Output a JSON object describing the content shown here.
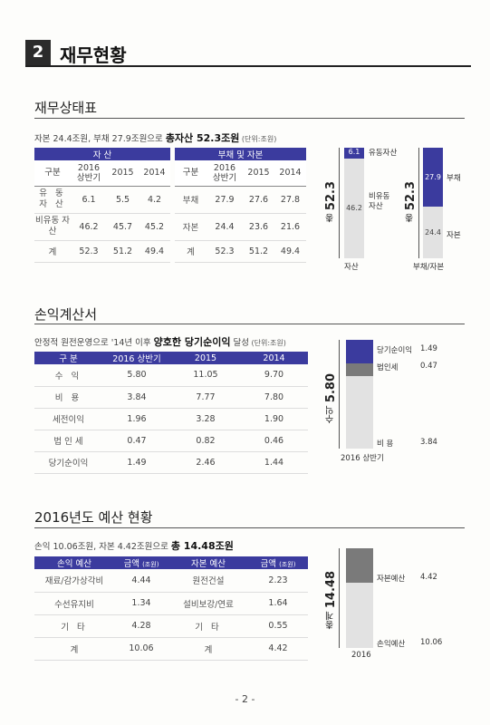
{
  "header": {
    "number": "2",
    "title": "재무현황"
  },
  "balance": {
    "title": "재무상태표",
    "summary_pre": "자본 24.4조원, 부채 27.9조원으로 ",
    "summary_bold": "총자산 52.3조원",
    "unit": " (단위:조원)",
    "assets_header": "자 산",
    "liab_header": "부채 및 자본",
    "col_label": "구분",
    "col_2016": "2016 상반기",
    "col_2015": "2015",
    "col_2014": "2014",
    "asset_rows": [
      {
        "label": "유 동 자 산",
        "v2016": "6.1",
        "v2015": "5.5",
        "v2014": "4.2"
      },
      {
        "label": "비유동 자 산",
        "v2016": "46.2",
        "v2015": "45.7",
        "v2014": "45.2"
      },
      {
        "label": "계",
        "v2016": "52.3",
        "v2015": "51.2",
        "v2014": "49.4"
      }
    ],
    "liab_rows": [
      {
        "label": "부채",
        "v2016": "27.9",
        "v2015": "27.6",
        "v2014": "27.8"
      },
      {
        "label": "자본",
        "v2016": "24.4",
        "v2015": "23.6",
        "v2014": "21.6"
      },
      {
        "label": "계",
        "v2016": "52.3",
        "v2015": "51.2",
        "v2014": "49.4"
      }
    ],
    "chart": {
      "asset_total_prefix": "총 ",
      "asset_total": "52.3",
      "asset_top_value": "6.1",
      "asset_top_label": "유동자산",
      "asset_bottom_value": "46.2",
      "asset_bottom_label": "비유동 자산",
      "asset_axis": "자산",
      "liab_total_prefix": "총 ",
      "liab_total": "52.3",
      "liab_top_value": "27.9",
      "liab_top_label": "부채",
      "liab_bottom_value": "24.4",
      "liab_bottom_label": "자본",
      "liab_axis": "부채/자본"
    }
  },
  "income": {
    "title": "손익계산서",
    "summary_pre": "안정적 원전운영으로 '14년 이후 ",
    "summary_bold": "양호한 당기순이익",
    "summary_post": " 달성",
    "unit": " (단위:조원)",
    "headers": [
      "구 분",
      "2016 상반기",
      "2015",
      "2014"
    ],
    "rows": [
      {
        "label": "수 익",
        "v2016": "5.80",
        "v2015": "11.05",
        "v2014": "9.70"
      },
      {
        "label": "비 용",
        "v2016": "3.84",
        "v2015": "7.77",
        "v2014": "7.80"
      },
      {
        "label": "세전이익",
        "v2016": "1.96",
        "v2015": "3.28",
        "v2014": "1.90"
      },
      {
        "label": "법 인 세",
        "v2016": "0.47",
        "v2015": "0.82",
        "v2014": "0.46"
      },
      {
        "label": "당기순이익",
        "v2016": "1.49",
        "v2015": "2.46",
        "v2014": "1.44"
      }
    ],
    "chart": {
      "total_prefix": "수익 ",
      "total": "5.80",
      "net_label": "당기순이익",
      "net_value": "1.49",
      "tax_label": "법인세",
      "tax_value": "0.47",
      "cost_label": "비 용",
      "cost_value": "3.84",
      "axis": "2016 상반기"
    }
  },
  "budget": {
    "title": "2016년도 예산 현황",
    "summary_pre": "손익 10.06조원, 자본 4.42조원으로 ",
    "summary_bold": "총 14.48조원",
    "headers": {
      "pl": "손익 예산",
      "amount": "금액",
      "unit": "(조원)",
      "cap": "자본 예산"
    },
    "rows": [
      {
        "pl": "재료/감가상각비",
        "pl_amt": "4.44",
        "cap": "원전건설",
        "cap_amt": "2.23"
      },
      {
        "pl": "수선유지비",
        "pl_amt": "1.34",
        "cap": "설비보강/연료",
        "cap_amt": "1.64"
      },
      {
        "pl": "기 타",
        "pl_amt": "4.28",
        "cap": "기 타",
        "cap_amt": "0.55"
      },
      {
        "pl": "계",
        "pl_amt": "10.06",
        "cap": "계",
        "cap_amt": "4.42"
      }
    ],
    "chart": {
      "total_prefix": "총계 ",
      "total": "14.48",
      "cap_label": "자본예산",
      "cap_value": "4.42",
      "pl_label": "손익예산",
      "pl_value": "10.06",
      "axis": "2016"
    }
  },
  "footer": {
    "page": "- 2 -"
  },
  "colors": {
    "accent": "#3b3b9e",
    "dark_gray": "#7a7a7a",
    "light_gray": "#e2e2e2"
  }
}
